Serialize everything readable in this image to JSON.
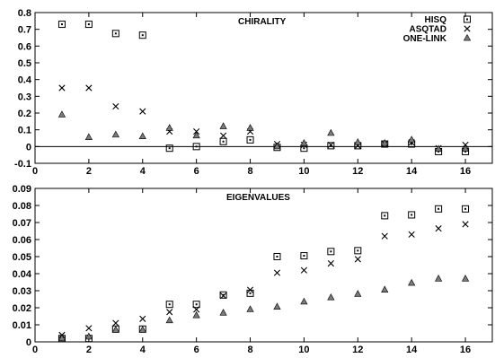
{
  "chart_data": [
    {
      "type": "scatter",
      "title": "CHIRALITY",
      "xlabel": "",
      "ylabel": "",
      "xlim": [
        0,
        17
      ],
      "ylim": [
        -0.1,
        0.8
      ],
      "x_ticks": [
        "0",
        "2",
        "4",
        "6",
        "8",
        "10",
        "12",
        "14",
        "16"
      ],
      "y_ticks": [
        "-0.1",
        "0",
        "0.1",
        "0.2",
        "0.3",
        "0.4",
        "0.5",
        "0.6",
        "0.7",
        "0.8"
      ],
      "zero_line": true,
      "legend": {
        "placement": "top-right",
        "entries": [
          "HISQ",
          "ASQTAD",
          "ONE-LINK"
        ]
      },
      "x": [
        1,
        2,
        3,
        4,
        5,
        6,
        7,
        8,
        9,
        10,
        11,
        12,
        13,
        14,
        15,
        16
      ],
      "series": [
        {
          "name": "HISQ",
          "marker": "square-dot",
          "values": [
            0.73,
            0.73,
            0.675,
            0.665,
            -0.01,
            0.0,
            0.03,
            0.04,
            -0.005,
            -0.01,
            0.005,
            0.005,
            0.015,
            0.015,
            -0.03,
            -0.03
          ]
        },
        {
          "name": "ASQTAD",
          "marker": "cross",
          "values": [
            0.35,
            0.35,
            0.24,
            0.21,
            0.09,
            0.09,
            0.065,
            0.09,
            0.015,
            0.01,
            0.01,
            0.005,
            0.015,
            0.025,
            -0.01,
            0.01
          ]
        },
        {
          "name": "ONE-LINK",
          "marker": "triangle",
          "values": [
            0.19,
            0.055,
            0.07,
            0.06,
            0.11,
            0.065,
            0.12,
            0.11,
            0.0,
            0.02,
            0.08,
            0.025,
            0.02,
            0.04,
            -0.015,
            -0.015
          ]
        }
      ]
    },
    {
      "type": "scatter",
      "title": "EIGENVALUES",
      "xlabel": "",
      "ylabel": "",
      "xlim": [
        0,
        17
      ],
      "ylim": [
        0,
        0.09
      ],
      "x_ticks": [
        "0",
        "2",
        "4",
        "6",
        "8",
        "10",
        "12",
        "14",
        "16"
      ],
      "y_ticks": [
        "0",
        "0.01",
        "0.02",
        "0.03",
        "0.04",
        "0.05",
        "0.06",
        "0.07",
        "0.08",
        "0.09"
      ],
      "x": [
        1,
        2,
        3,
        4,
        5,
        6,
        7,
        8,
        9,
        10,
        11,
        12,
        13,
        14,
        15,
        16
      ],
      "series": [
        {
          "name": "HISQ",
          "marker": "square-dot",
          "values": [
            0.002,
            0.002,
            0.0075,
            0.0075,
            0.022,
            0.022,
            0.0275,
            0.0285,
            0.05,
            0.0505,
            0.053,
            0.0535,
            0.074,
            0.0745,
            0.078,
            0.078
          ]
        },
        {
          "name": "ASQTAD",
          "marker": "cross",
          "values": [
            0.004,
            0.008,
            0.011,
            0.0135,
            0.0175,
            0.019,
            0.027,
            0.0305,
            0.0405,
            0.042,
            0.046,
            0.0485,
            0.062,
            0.063,
            0.0665,
            0.069
          ]
        },
        {
          "name": "ONE-LINK",
          "marker": "triangle",
          "values": [
            0.002,
            0.003,
            0.007,
            0.007,
            0.0125,
            0.0155,
            0.017,
            0.019,
            0.0205,
            0.0235,
            0.026,
            0.028,
            0.0305,
            0.0345,
            0.037,
            0.037
          ]
        }
      ]
    }
  ]
}
